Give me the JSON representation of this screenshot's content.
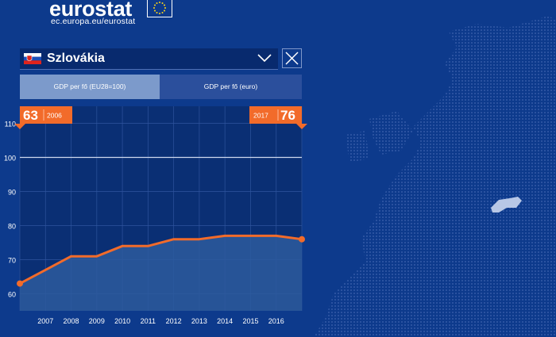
{
  "brand": {
    "name": "eurostat",
    "url": "ec.europa.eu/eurostat"
  },
  "country_selector": {
    "selected": "Szlovákia",
    "flag_icon": "slovakia-flag-icon"
  },
  "tabs": [
    {
      "label": "GDP per  fő  (EU28=100)",
      "active": true
    },
    {
      "label": "GDP per  fő  (euro)",
      "active": false
    }
  ],
  "colors": {
    "background": "#0d3a8c",
    "accent": "#f26b2a",
    "line": "#f26b2a"
  },
  "chart_data": {
    "type": "area",
    "x": [
      2006,
      2007,
      2008,
      2009,
      2010,
      2011,
      2012,
      2013,
      2014,
      2015,
      2016,
      2017
    ],
    "x_tick_labels": [
      "2007",
      "2008",
      "2009",
      "2010",
      "2011",
      "2012",
      "2013",
      "2014",
      "2015",
      "2016"
    ],
    "values": [
      63,
      67,
      71,
      71,
      74,
      74,
      76,
      76,
      77,
      77,
      77,
      76
    ],
    "y_ticks": [
      60,
      70,
      80,
      90,
      100,
      110
    ],
    "ylim": [
      55,
      115
    ],
    "reference_line": 100,
    "start_label": {
      "value": "63",
      "year": "2006"
    },
    "end_label": {
      "value": "76",
      "year": "2017"
    }
  }
}
